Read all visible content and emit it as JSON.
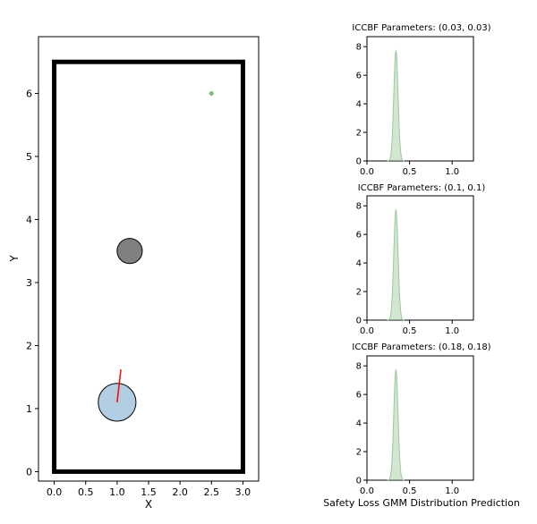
{
  "chart_data": [
    {
      "type": "scatter",
      "xlabel": "X",
      "ylabel": "Y",
      "xlim": [
        -0.25,
        3.25
      ],
      "ylim": [
        -0.15,
        6.9
      ],
      "xticks": [
        0.0,
        0.5,
        1.0,
        1.5,
        2.0,
        2.5,
        3.0
      ],
      "xtick_labels": [
        "0.0",
        "0.5",
        "1.0",
        "1.5",
        "2.0",
        "2.5",
        "3.0"
      ],
      "yticks": [
        0,
        1,
        2,
        3,
        4,
        5,
        6
      ],
      "ytick_labels": [
        "0",
        "1",
        "2",
        "3",
        "4",
        "5",
        "6"
      ],
      "boundary": {
        "x0": 0.0,
        "y0": 0.0,
        "x1": 3.0,
        "y1": 6.5,
        "color": "#000000"
      },
      "obstacle": {
        "x": 1.2,
        "y": 3.5,
        "r": 0.2,
        "color": "#808080"
      },
      "robot": {
        "x": 1.0,
        "y": 1.1,
        "r": 0.3,
        "color": "#b3cde3"
      },
      "heading": {
        "x0": 1.0,
        "y0": 1.1,
        "x1": 1.06,
        "y1": 1.62,
        "color": "#ff0000"
      },
      "goal": {
        "x": 2.5,
        "y": 6.0,
        "color": "#7ec87e"
      }
    },
    {
      "type": "area",
      "title": "ICCBF Parameters: (0.03, 0.03)",
      "xlim": [
        0.0,
        1.25
      ],
      "ylim": [
        0,
        8.7
      ],
      "xticks": [
        0.0,
        0.5,
        1.0
      ],
      "xtick_labels": [
        "0.0",
        "0.5",
        "1.0"
      ],
      "yticks": [
        0,
        2,
        4,
        6,
        8
      ],
      "ytick_labels": [
        "0",
        "2",
        "4",
        "6",
        "8"
      ],
      "peak_x": 0.34,
      "peak_y": 7.7,
      "std": 0.025,
      "color": "#9cc79c"
    },
    {
      "type": "area",
      "title": "ICCBF Parameters: (0.1, 0.1)",
      "xlim": [
        0.0,
        1.25
      ],
      "ylim": [
        0,
        8.7
      ],
      "xticks": [
        0.0,
        0.5,
        1.0
      ],
      "xtick_labels": [
        "0.0",
        "0.5",
        "1.0"
      ],
      "yticks": [
        0,
        2,
        4,
        6,
        8
      ],
      "ytick_labels": [
        "0",
        "2",
        "4",
        "6",
        "8"
      ],
      "peak_x": 0.34,
      "peak_y": 7.7,
      "std": 0.025,
      "color": "#9cc79c"
    },
    {
      "type": "area",
      "title": "ICCBF Parameters: (0.18, 0.18)",
      "xlim": [
        0.0,
        1.25
      ],
      "ylim": [
        0,
        8.7
      ],
      "xticks": [
        0.0,
        0.5,
        1.0
      ],
      "xtick_labels": [
        "0.0",
        "0.5",
        "1.0"
      ],
      "yticks": [
        0,
        2,
        4,
        6,
        8
      ],
      "ytick_labels": [
        "0",
        "2",
        "4",
        "6",
        "8"
      ],
      "peak_x": 0.34,
      "peak_y": 7.7,
      "std": 0.025,
      "color": "#9cc79c"
    }
  ],
  "figure_caption": "Safety Loss GMM Distribution Prediction"
}
